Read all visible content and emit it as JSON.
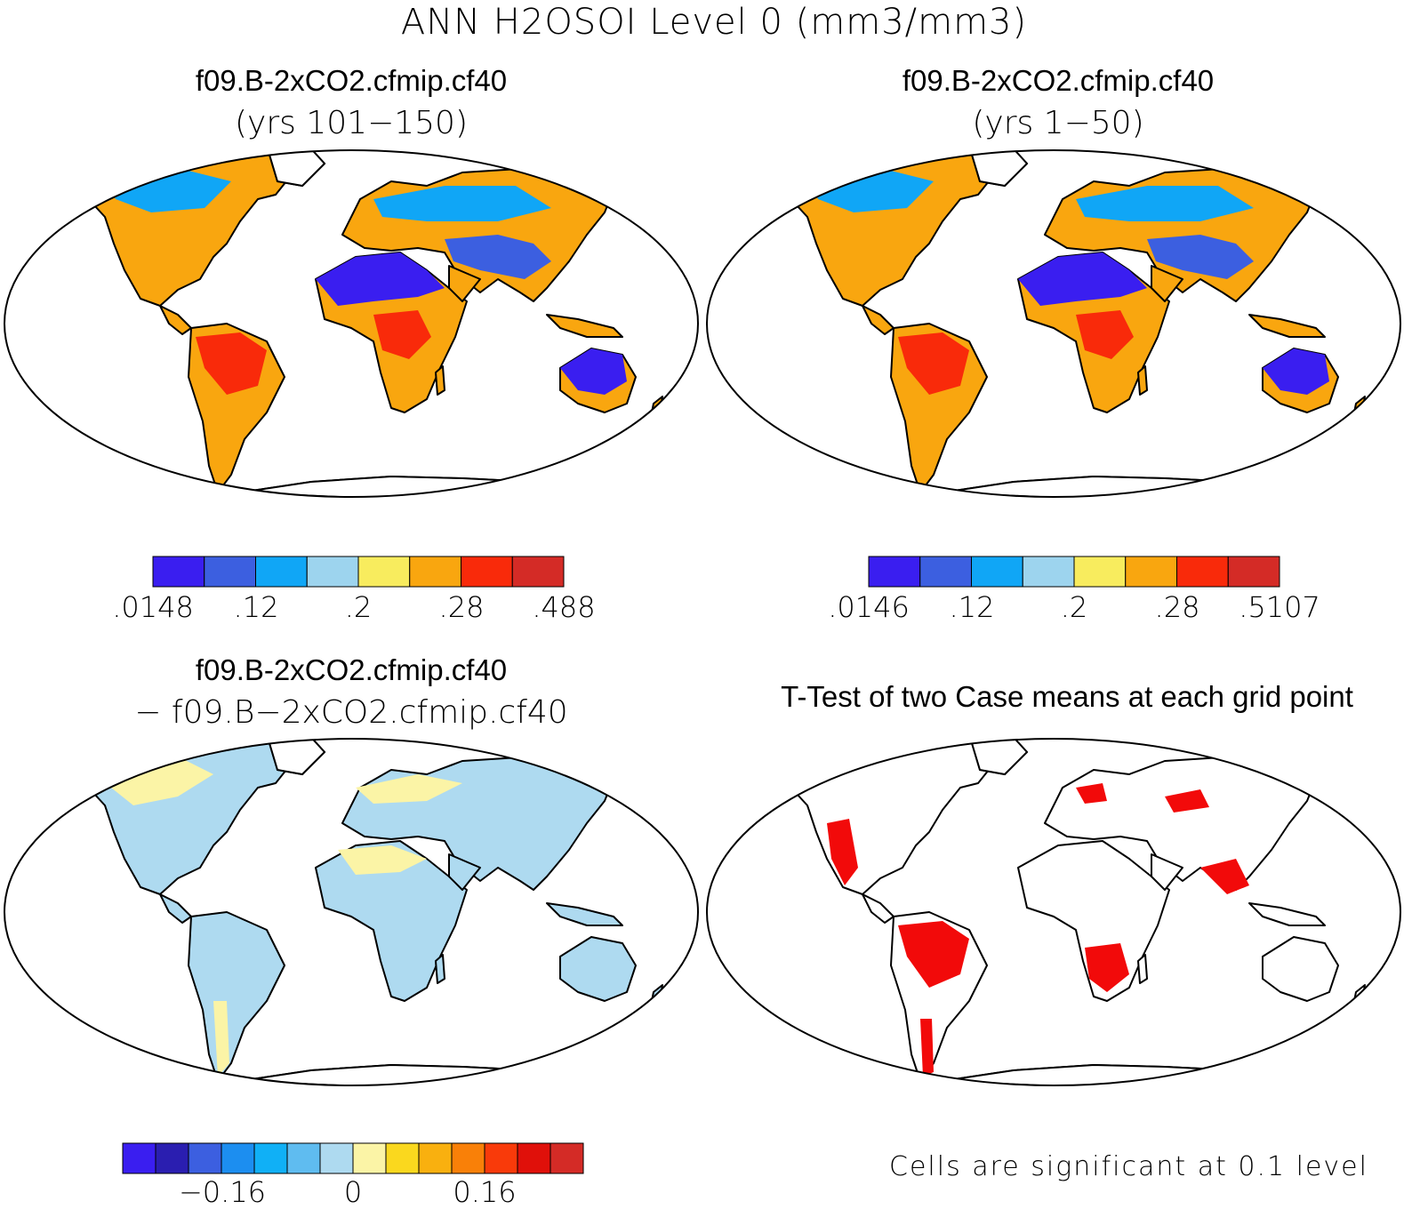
{
  "title": "ANN H2OSOI Level 0 (mm3/mm3)",
  "panels": [
    {
      "id": "top-left",
      "title": "f09.B-2xCO2.cfmip.cf40",
      "subtitle": "(yrs 101−150)"
    },
    {
      "id": "top-right",
      "title": "f09.B-2xCO2.cfmip.cf40",
      "subtitle": "(yrs 1−50)"
    },
    {
      "id": "bottom-left",
      "title": "f09.B-2xCO2.cfmip.cf40",
      "subtitle": "− f09.B−2xCO2.cfmip.cf40"
    },
    {
      "id": "bottom-right",
      "title": "T-Test of two Case means at each grid point",
      "subtitle": ""
    }
  ],
  "colorbars": {
    "top_left": {
      "colors": [
        "#3a1ef0",
        "#3c5fe0",
        "#10a6f6",
        "#9dd4ee",
        "#f8ec5e",
        "#f9a60f",
        "#f92a0a",
        "#d42b26"
      ],
      "labels": [
        ".0148",
        ".12",
        ".2",
        ".28",
        ".488"
      ]
    },
    "top_right": {
      "colors": [
        "#3a1ef0",
        "#3c5fe0",
        "#10a6f6",
        "#9dd4ee",
        "#f8ec5e",
        "#f9a60f",
        "#f92a0a",
        "#d42b26"
      ],
      "labels": [
        ".0146",
        ".12",
        ".2",
        ".28",
        ".5107"
      ]
    },
    "bottom_left": {
      "colors": [
        "#3a1ef0",
        "#2a1eb0",
        "#3c5fe0",
        "#1c8ef0",
        "#10b0f6",
        "#5fbcf0",
        "#aedaf0",
        "#fbf4a6",
        "#fad81e",
        "#f9b00f",
        "#f98008",
        "#f93a0a",
        "#e0100a",
        "#d42b26"
      ],
      "labels": [
        "−0.16",
        "0",
        "0.16"
      ]
    }
  },
  "note": "Cells are significant at 0.1 level"
}
